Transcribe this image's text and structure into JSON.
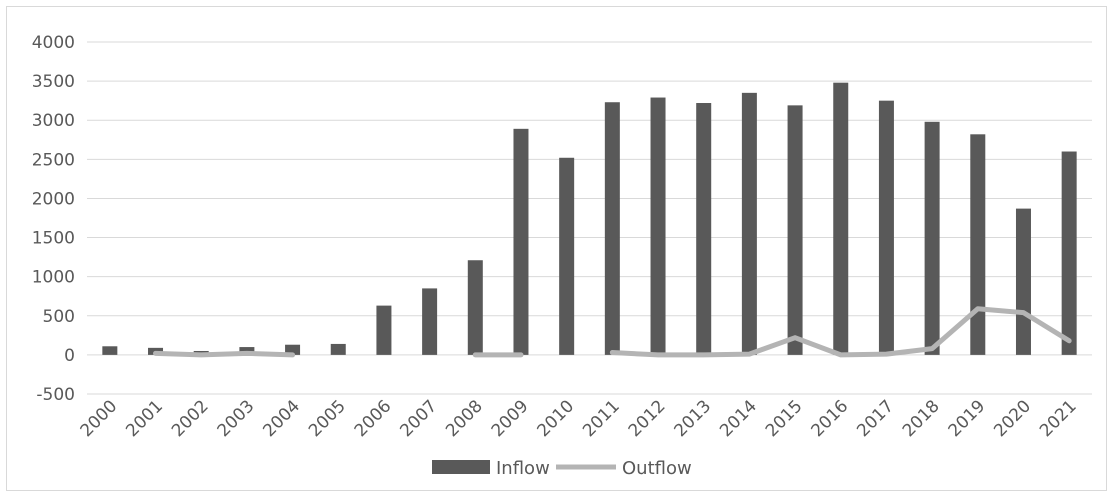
{
  "chart_data": {
    "type": "bar",
    "categories": [
      "2000",
      "2001",
      "2002",
      "2003",
      "2004",
      "2005",
      "2006",
      "2007",
      "2008",
      "2009",
      "2010",
      "2011",
      "2012",
      "2013",
      "2014",
      "2015",
      "2016",
      "2017",
      "2018",
      "2019",
      "2020",
      "2021"
    ],
    "series": [
      {
        "name": "Inflow",
        "type": "bar",
        "color": "#595959",
        "values": [
          110,
          90,
          50,
          100,
          130,
          140,
          630,
          850,
          1210,
          2890,
          2520,
          3230,
          3290,
          3220,
          3350,
          3190,
          3480,
          3250,
          2980,
          2820,
          1870,
          2600
        ]
      },
      {
        "name": "Outflow",
        "type": "line",
        "color": "#b4b4b4",
        "values": [
          null,
          20,
          0,
          20,
          0,
          null,
          null,
          null,
          0,
          0,
          null,
          30,
          0,
          0,
          10,
          220,
          0,
          10,
          80,
          590,
          540,
          180
        ]
      }
    ],
    "ylim": [
      -500,
      4000
    ],
    "yticks": [
      "4000",
      "3500",
      "3000",
      "2500",
      "2000",
      "1500",
      "1000",
      "500",
      "0",
      "-500"
    ],
    "ytick_values": [
      4000,
      3500,
      3000,
      2500,
      2000,
      1500,
      1000,
      500,
      0,
      -500
    ],
    "grid": true,
    "legend_position": "bottom"
  }
}
